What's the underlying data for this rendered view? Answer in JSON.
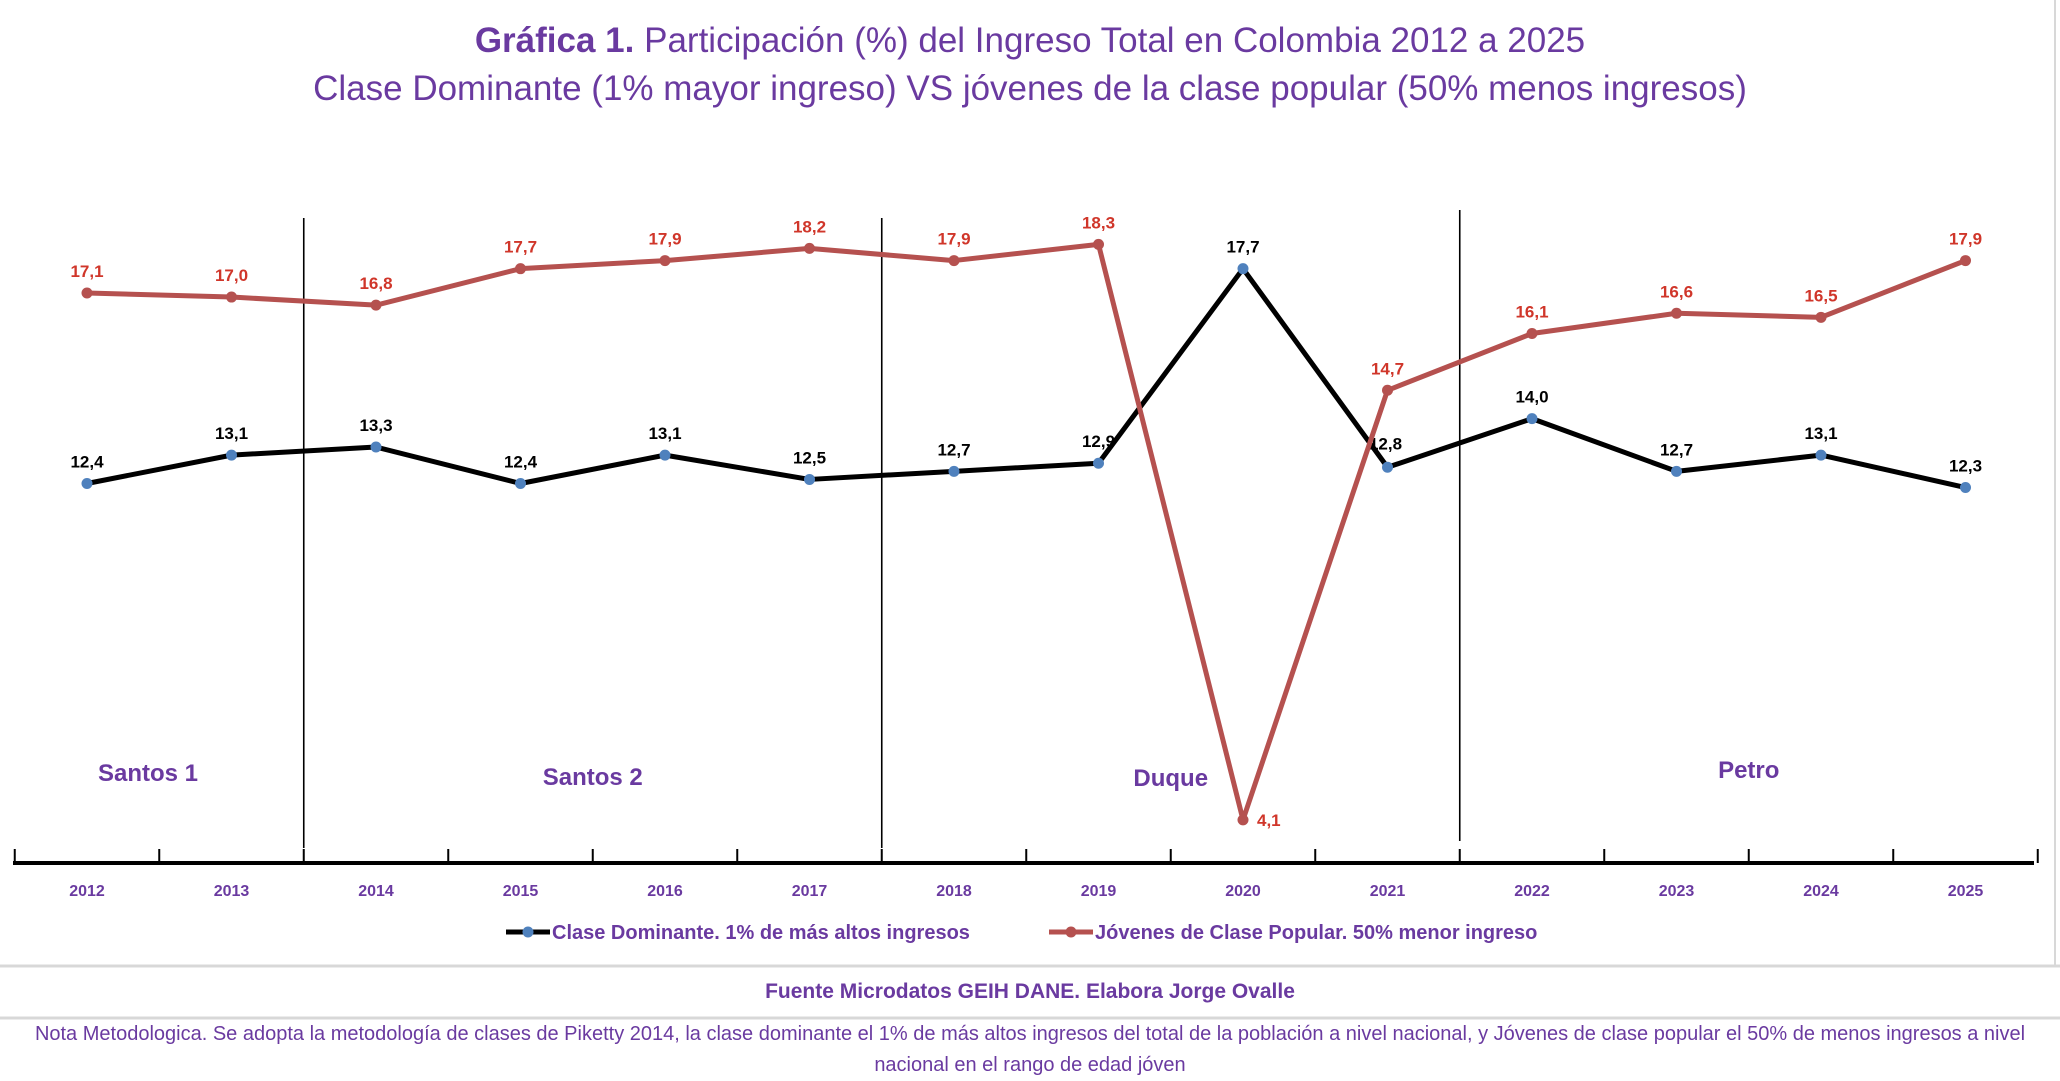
{
  "chart_data": {
    "type": "line",
    "title_bold": "Gráfica 1.",
    "title": "Participación (%) del Ingreso Total en Colombia 2012 a 2025",
    "subtitle": "Clase Dominante (1% mayor ingreso) VS jóvenes de la clase popular (50% menos ingresos)",
    "categories": [
      "2012",
      "2013",
      "2014",
      "2015",
      "2016",
      "2017",
      "2018",
      "2019",
      "2020",
      "2021",
      "2022",
      "2023",
      "2024",
      "2025"
    ],
    "series": [
      {
        "name": "Clase Dominante. 1% de más altos ingresos",
        "color": "#000000",
        "marker_color": "#4f81bd",
        "label_color": "#000000",
        "values": [
          12.4,
          13.1,
          13.3,
          12.4,
          13.1,
          12.5,
          12.7,
          12.9,
          17.7,
          12.8,
          14.0,
          12.7,
          13.1,
          12.3
        ],
        "labels": [
          "12,4",
          "13,1",
          "13,3",
          "12,4",
          "13,1",
          "12,5",
          "12,7",
          "12,9",
          "17,7",
          "12,8",
          "14,0",
          "12,7",
          "13,1",
          "12,3"
        ]
      },
      {
        "name": "Jóvenes de Clase Popular. 50% menor ingreso",
        "color": "#b5514f",
        "marker_color": "#b5514f",
        "label_color": "#d0362a",
        "values": [
          17.1,
          17.0,
          16.8,
          17.7,
          17.9,
          18.2,
          17.9,
          18.3,
          4.1,
          14.7,
          16.1,
          16.6,
          16.5,
          17.9
        ],
        "labels": [
          "17,1",
          "17,0",
          "16,8",
          "17,7",
          "17,9",
          "18,2",
          "17,9",
          "18,3",
          "4,1",
          "14,7",
          "16,1",
          "16,6",
          "16,5",
          "17,9"
        ]
      }
    ],
    "periods": [
      {
        "label": "Santos 1",
        "from": "2012",
        "to": "2013"
      },
      {
        "label": "Santos 2",
        "from": "2014",
        "to": "2017"
      },
      {
        "label": "Duque",
        "from": "2018",
        "to": "2021"
      },
      {
        "label": "Petro",
        "from": "2022",
        "to": "2025"
      }
    ],
    "legend_position": "bottom",
    "grid": false,
    "xlabel": "",
    "ylabel": ""
  },
  "footer": {
    "source": "Fuente Microdatos GEIH DANE. Elabora Jorge Ovalle",
    "note": "Nota Metodologica. Se adopta la metodología de clases de Piketty 2014, la clase dominante el 1% de más altos ingresos del total de la población a nivel nacional, y Jóvenes de clase popular el 50% de menos ingresos a nivel nacional en el rango de edad jóven"
  },
  "colors": {
    "text": "#6a3aa0"
  }
}
